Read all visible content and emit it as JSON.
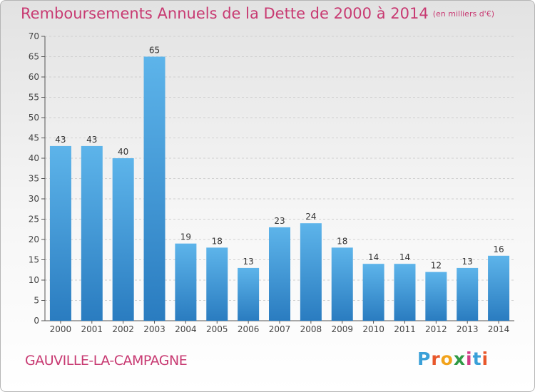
{
  "title": {
    "main": "Remboursements Annuels de la Dette de 2000 à 2014",
    "unit": "(en milliers d'€)"
  },
  "place": "GAUVILLE-LA-CAMPAGNE",
  "brand": {
    "letters": [
      "P",
      "r",
      "o",
      "x",
      "i",
      "t",
      "i"
    ],
    "colors": [
      "#3aa0d8",
      "#e8572b",
      "#f2a31b",
      "#2f9a45",
      "#d23b85",
      "#3aa0d8",
      "#e8572b"
    ]
  },
  "colors": {
    "bar_top": "#5db4ea",
    "bar_bottom": "#2a7cc0",
    "title": "#c83a72"
  },
  "chart_data": {
    "type": "bar",
    "title": "Remboursements Annuels de la Dette de 2000 à 2014",
    "ylabel": "en milliers d'€",
    "categories": [
      "2000",
      "2001",
      "2002",
      "2003",
      "2004",
      "2005",
      "2006",
      "2007",
      "2008",
      "2009",
      "2010",
      "2011",
      "2012",
      "2013",
      "2014"
    ],
    "values": [
      43,
      43,
      40,
      65,
      19,
      18,
      13,
      23,
      24,
      18,
      14,
      14,
      12,
      13,
      16
    ],
    "ylim": [
      0,
      70
    ],
    "yticks": [
      0,
      5,
      10,
      15,
      20,
      25,
      30,
      35,
      40,
      45,
      50,
      55,
      60,
      65,
      70
    ],
    "grid": true
  }
}
